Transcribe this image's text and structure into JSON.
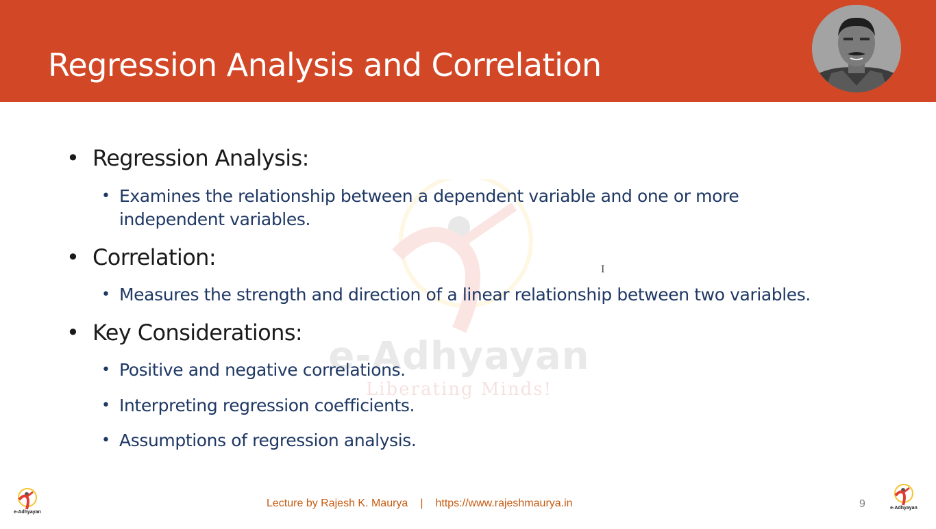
{
  "slide": {
    "title": "Regression Analysis and Correlation",
    "page_number": "9"
  },
  "watermark": {
    "brand": "e-Adhyayan",
    "tagline": "Liberating Minds!"
  },
  "content": {
    "sections": [
      {
        "heading": "Regression Analysis:",
        "items": [
          "Examines the relationship between a dependent variable and one or more independent variables."
        ]
      },
      {
        "heading": "Correlation:",
        "items": [
          "Measures the strength and direction of a linear relationship between two variables."
        ]
      },
      {
        "heading": "Key Considerations:",
        "items": [
          "Positive and negative correlations.",
          "Interpreting regression coefficients.",
          "Assumptions of regression analysis."
        ]
      }
    ]
  },
  "footer": {
    "lecture": "Lecture by Rajesh K. Maurya",
    "separator": "|",
    "url": "https://www.rajeshmaurya.in"
  },
  "logos": {
    "left_label": "e-Adhyayan",
    "right_label": "e-Adhyayan"
  },
  "colors": {
    "header": "#d24726",
    "level1_text": "#1a1a1a",
    "level2_text": "#1f3864",
    "footer_text": "#c55a11"
  }
}
